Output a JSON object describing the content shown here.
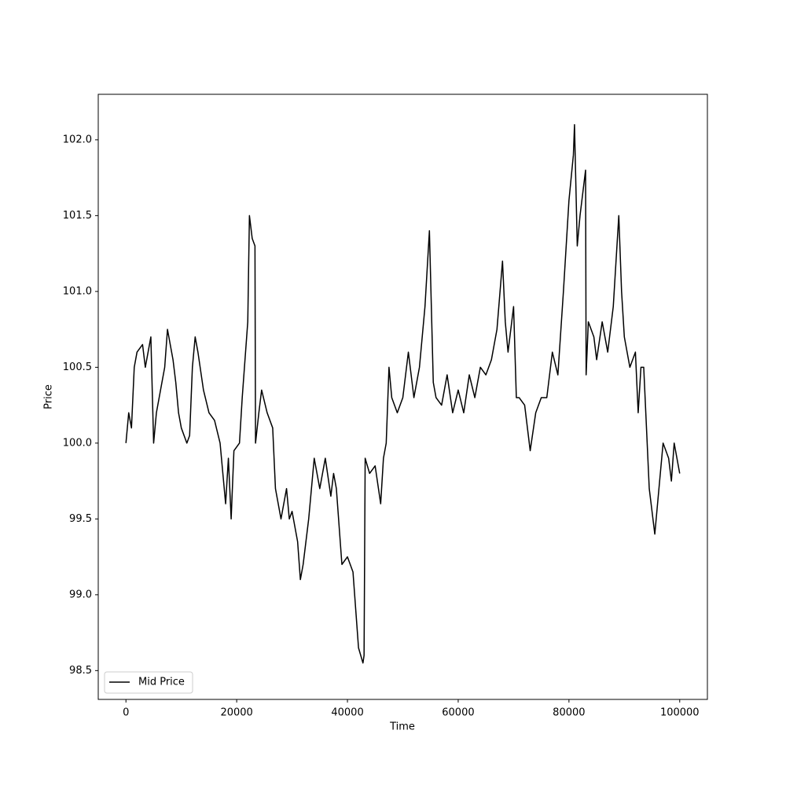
{
  "chart_data": {
    "type": "line",
    "x_label": "Time",
    "y_label": "Price",
    "x": [
      0,
      500,
      1000,
      1500,
      2000,
      3000,
      3500,
      4000,
      4500,
      5000,
      5500,
      6500,
      7000,
      7500,
      8500,
      9000,
      9500,
      10000,
      11000,
      11500,
      12000,
      12500,
      13000,
      14000,
      15000,
      16000,
      17000,
      18000,
      18500,
      19000,
      19500,
      20500,
      21000,
      22000,
      22300,
      22800,
      23300,
      23400,
      24000,
      24500,
      25500,
      26500,
      27000,
      28000,
      29000,
      29500,
      30000,
      31000,
      31500,
      32000,
      33000,
      34000,
      35000,
      36000,
      37000,
      37500,
      38000,
      39000,
      40000,
      41000,
      41500,
      42000,
      42800,
      43000,
      43200,
      44000,
      45000,
      46000,
      46500,
      47000,
      47500,
      48000,
      49000,
      50000,
      51000,
      52000,
      53000,
      54000,
      54800,
      55500,
      56000,
      57000,
      58000,
      59000,
      60000,
      61000,
      62000,
      63000,
      64000,
      65000,
      66000,
      67000,
      68000,
      68500,
      69000,
      70000,
      70500,
      71000,
      72000,
      73000,
      74000,
      75000,
      76000,
      77000,
      78000,
      79000,
      80000,
      80800,
      81000,
      81500,
      82000,
      83000,
      83100,
      83500,
      84500,
      85000,
      86000,
      87000,
      88000,
      89000,
      89500,
      90000,
      91000,
      92000,
      92500,
      93000,
      93500,
      94500,
      95500,
      96000,
      96500,
      97000,
      98000,
      98500,
      99000,
      100000
    ],
    "series": [
      {
        "name": "Mid Price",
        "color": "#000000",
        "values": [
          100.0,
          100.2,
          100.1,
          100.5,
          100.6,
          100.65,
          100.5,
          100.6,
          100.7,
          100.0,
          100.2,
          100.4,
          100.5,
          100.75,
          100.55,
          100.4,
          100.2,
          100.1,
          100.0,
          100.05,
          100.5,
          100.7,
          100.6,
          100.35,
          100.2,
          100.15,
          100.0,
          99.6,
          99.9,
          99.5,
          99.95,
          100.0,
          100.3,
          100.8,
          101.5,
          101.35,
          101.3,
          100.0,
          100.2,
          100.35,
          100.2,
          100.1,
          99.7,
          99.5,
          99.7,
          99.5,
          99.55,
          99.35,
          99.1,
          99.2,
          99.5,
          99.9,
          99.7,
          99.9,
          99.65,
          99.8,
          99.7,
          99.2,
          99.25,
          99.15,
          98.9,
          98.65,
          98.55,
          98.6,
          99.9,
          99.8,
          99.85,
          99.6,
          99.9,
          100.0,
          100.5,
          100.3,
          100.2,
          100.3,
          100.6,
          100.3,
          100.5,
          100.9,
          101.4,
          100.4,
          100.3,
          100.25,
          100.45,
          100.2,
          100.35,
          100.2,
          100.45,
          100.3,
          100.5,
          100.45,
          100.55,
          100.75,
          101.2,
          100.8,
          100.6,
          100.9,
          100.3,
          100.3,
          100.25,
          99.95,
          100.2,
          100.3,
          100.3,
          100.6,
          100.45,
          101.0,
          101.6,
          101.9,
          102.1,
          101.3,
          101.5,
          101.8,
          100.45,
          100.8,
          100.7,
          100.55,
          100.8,
          100.6,
          100.9,
          101.5,
          101.0,
          100.7,
          100.5,
          100.6,
          100.2,
          100.5,
          100.5,
          99.7,
          99.4,
          99.6,
          99.8,
          100.0,
          99.9,
          99.75,
          100.0,
          99.8
        ]
      }
    ],
    "xlim": [
      -5000,
      105000
    ],
    "xticks": [
      0,
      20000,
      40000,
      60000,
      80000,
      100000
    ],
    "ylim": [
      98.31,
      102.3
    ],
    "yticks": [
      98.5,
      {
        "value": 99.0,
        "label": "99.0"
      },
      99.5,
      {
        "value": 100.0,
        "label": "100.0"
      },
      100.5,
      {
        "value": 101.0,
        "label": "101.0"
      },
      101.5,
      {
        "value": 102.0,
        "label": "102.0"
      }
    ],
    "legend": "lower left",
    "grid": false
  }
}
